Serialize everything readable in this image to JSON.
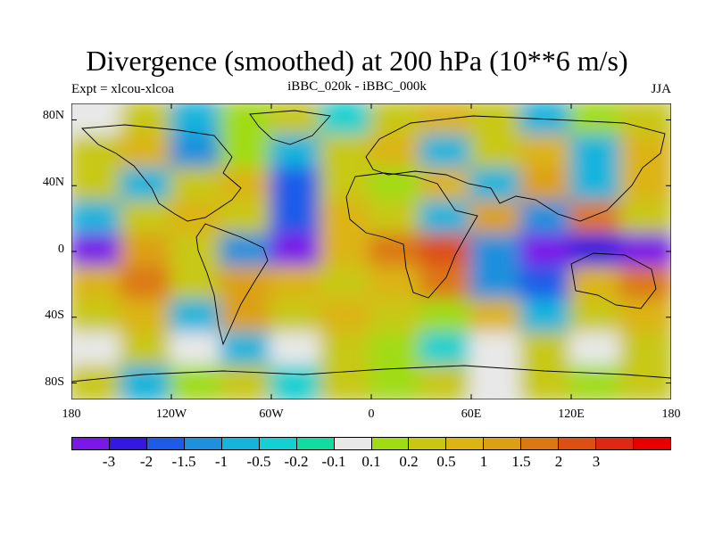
{
  "title": "Divergence (smoothed) at 200 hPa (10**6 m/s)",
  "experiment_label": "Expt = xlcou-xlcoa",
  "subtitle": "iBBC_020k - iBBC_000k",
  "season": "JJA",
  "latitude_labels": [
    "80N",
    "40N",
    "0",
    "40S",
    "80S"
  ],
  "longitude_labels": [
    "180",
    "120W",
    "60W",
    "0",
    "60E",
    "120E",
    "180"
  ],
  "colorbar": {
    "colors": [
      "#7a18e8",
      "#3418e0",
      "#1e5ce8",
      "#1e90dc",
      "#14b4dc",
      "#14d0d0",
      "#14dca0",
      "#e8e8e8",
      "#a0dc14",
      "#c8c814",
      "#dcb414",
      "#dca014",
      "#dc7814",
      "#dc5014",
      "#dc2814",
      "#e80000"
    ],
    "labels": [
      "-3",
      "-2",
      "-1.5",
      "-1",
      "-0.5",
      "-0.2",
      "-0.1",
      "0.1",
      "0.2",
      "0.5",
      "1",
      "1.5",
      "2",
      "3"
    ]
  },
  "map_data": {
    "field_description": "200 hPa smoothed divergence anomaly",
    "bands": [
      {
        "lat": 80,
        "values": [
          0.1,
          0.5,
          -0.5,
          0.2,
          0.5,
          -0.2,
          0.5,
          1,
          0.5,
          -0.5,
          0.2,
          0.5
        ]
      },
      {
        "lat": 60,
        "values": [
          0.5,
          1,
          -1,
          0.2,
          -0.5,
          0.5,
          1,
          -0.5,
          0.5,
          1,
          -0.5,
          1
        ]
      },
      {
        "lat": 40,
        "values": [
          0.5,
          -0.5,
          0.5,
          1,
          -1.5,
          0.5,
          0.2,
          1,
          -0.5,
          1.5,
          -0.5,
          1
        ]
      },
      {
        "lat": 20,
        "values": [
          -0.5,
          0.5,
          1,
          0.5,
          -1.5,
          1,
          0.5,
          -0.5,
          1.5,
          -1,
          2,
          0.5
        ]
      },
      {
        "lat": 0,
        "values": [
          -3,
          1.5,
          0.5,
          -1,
          -3,
          1,
          2,
          3,
          -1,
          -3,
          -2,
          -3
        ]
      },
      {
        "lat": -20,
        "values": [
          1,
          2,
          0.5,
          1.5,
          1,
          0.5,
          1,
          2,
          -1,
          -1.5,
          1,
          2
        ]
      },
      {
        "lat": -40,
        "values": [
          0.5,
          1,
          -0.5,
          1.5,
          0.5,
          1,
          0.5,
          0.2,
          1,
          -0.5,
          0.5,
          1
        ]
      },
      {
        "lat": -60,
        "values": [
          0.1,
          0.5,
          0.1,
          -0.5,
          0.1,
          0.5,
          0.2,
          -0.2,
          0.1,
          0.5,
          0.1,
          0.5
        ]
      },
      {
        "lat": -80,
        "values": [
          0.5,
          -0.5,
          0.2,
          0.5,
          -0.2,
          0.5,
          0.2,
          0.5,
          0.1,
          0.5,
          0.2,
          0.5
        ]
      }
    ]
  }
}
